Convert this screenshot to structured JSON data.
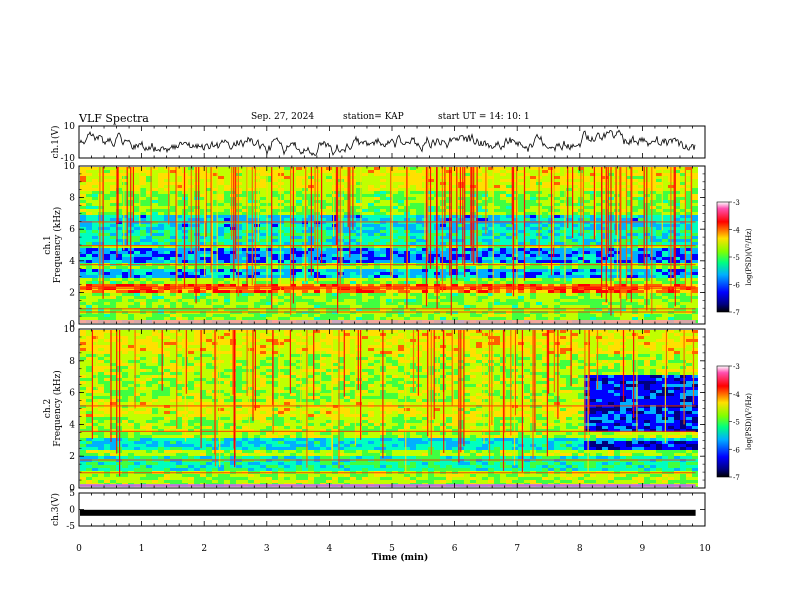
{
  "header": {
    "title": "VLF Spectra",
    "date": "Sep. 27, 2024",
    "station": "station= KAP",
    "start": "start  UT =   14: 10: 1"
  },
  "chart_data": [
    {
      "type": "line",
      "panel": "ch1-waveform",
      "ylabel": "ch.1(V)",
      "ylim": [
        -10,
        10
      ],
      "yticks": [
        "10",
        "-10"
      ]
    },
    {
      "type": "heatmap",
      "panel": "ch1-spectrogram",
      "ylabel_lines": [
        "ch.1",
        "Frequency (kHz)"
      ],
      "ylim": [
        0,
        10
      ],
      "yticks": [
        "0",
        "2",
        "4",
        "6",
        "8",
        "10"
      ],
      "colorbar": {
        "ticks": [
          "-3",
          "-4",
          "-5",
          "-6",
          "-7"
        ],
        "label": "log(PSD)(V²/Hz)"
      }
    },
    {
      "type": "heatmap",
      "panel": "ch2-spectrogram",
      "ylabel_lines": [
        "ch.2",
        "Frequency (kHz)"
      ],
      "ylim": [
        0,
        10
      ],
      "yticks": [
        "0",
        "2",
        "4",
        "6",
        "8",
        "10"
      ],
      "colorbar": {
        "ticks": [
          "-3",
          "-4",
          "-5",
          "-6",
          "-7"
        ],
        "label": "log(PSD)(V²/Hz)"
      }
    },
    {
      "type": "line",
      "panel": "ch3-waveform",
      "ylabel": "ch.3(V)",
      "ylim": [
        -5,
        5
      ],
      "yticks": [
        "5",
        "0",
        "-5"
      ],
      "value": -1
    }
  ],
  "xaxis": {
    "label": "Time (min)",
    "xlim": [
      0,
      10
    ],
    "ticks": [
      "0",
      "1",
      "2",
      "3",
      "4",
      "5",
      "6",
      "7",
      "8",
      "9",
      "10"
    ]
  },
  "colors": {
    "scale": [
      "#00007f",
      "#0000ff",
      "#00b0ff",
      "#00ffc0",
      "#40ff40",
      "#c0ff00",
      "#ffe000",
      "#ff6000",
      "#ff0000",
      "#ff4fb0"
    ]
  }
}
